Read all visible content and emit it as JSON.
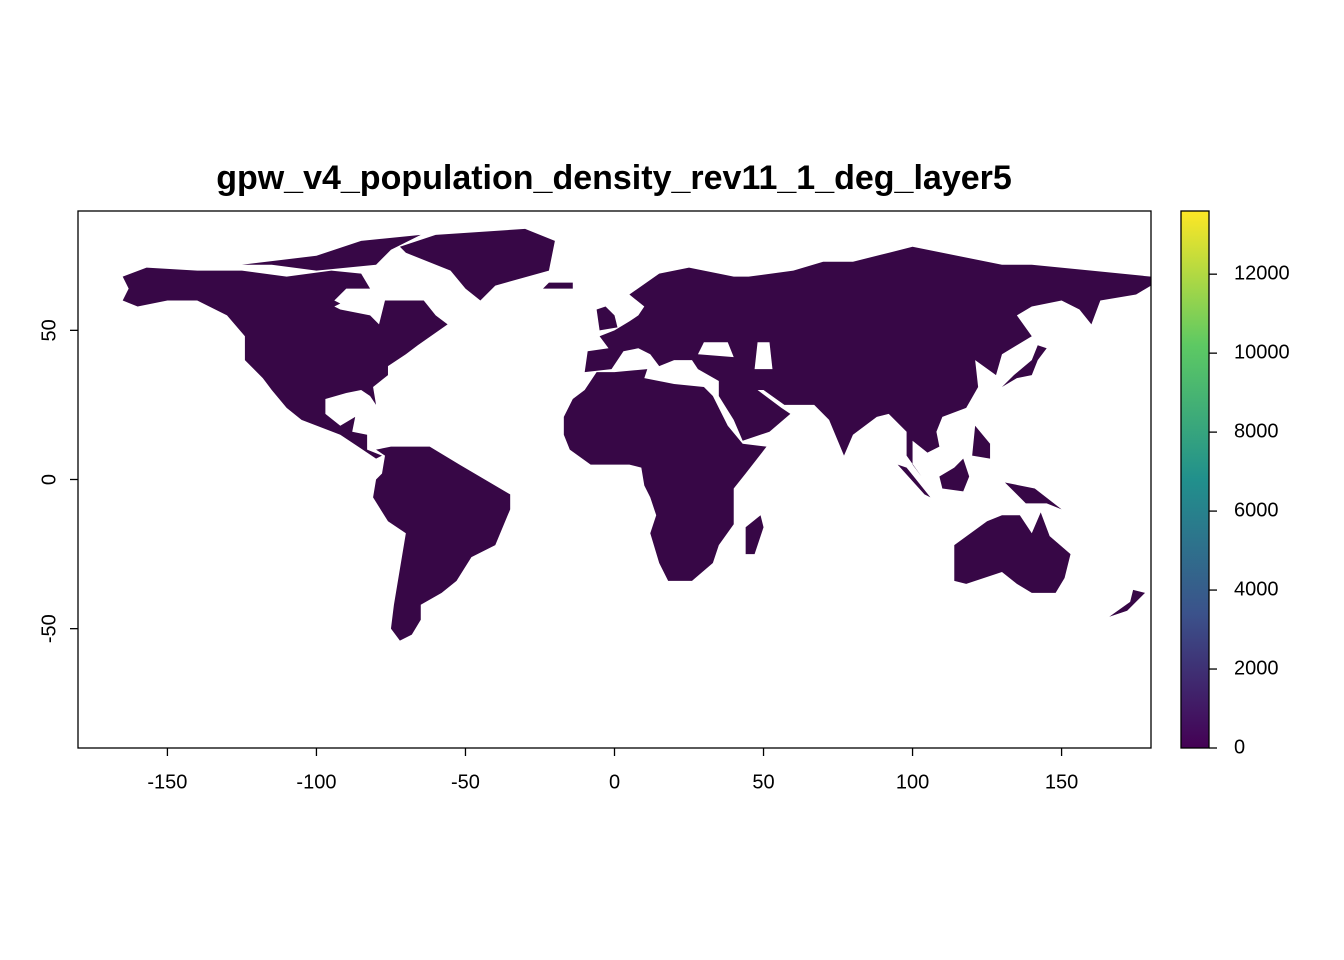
{
  "chart_data": {
    "type": "raster",
    "title": "gpw_v4_population_density_rev11_1_deg_layer5",
    "xlim": [
      -180,
      180
    ],
    "ylim": [
      -90,
      90
    ],
    "xticks": [
      -150,
      -100,
      -50,
      0,
      50,
      100,
      150
    ],
    "yticks": [
      -50,
      0,
      50
    ],
    "land_color": "#370746",
    "colorbar": {
      "lim": [
        0,
        13600
      ],
      "ticks": [
        0,
        2000,
        4000,
        6000,
        8000,
        10000,
        12000
      ],
      "colors": [
        "#440154",
        "#3b528b",
        "#21908c",
        "#5dc963",
        "#fde725"
      ]
    }
  }
}
